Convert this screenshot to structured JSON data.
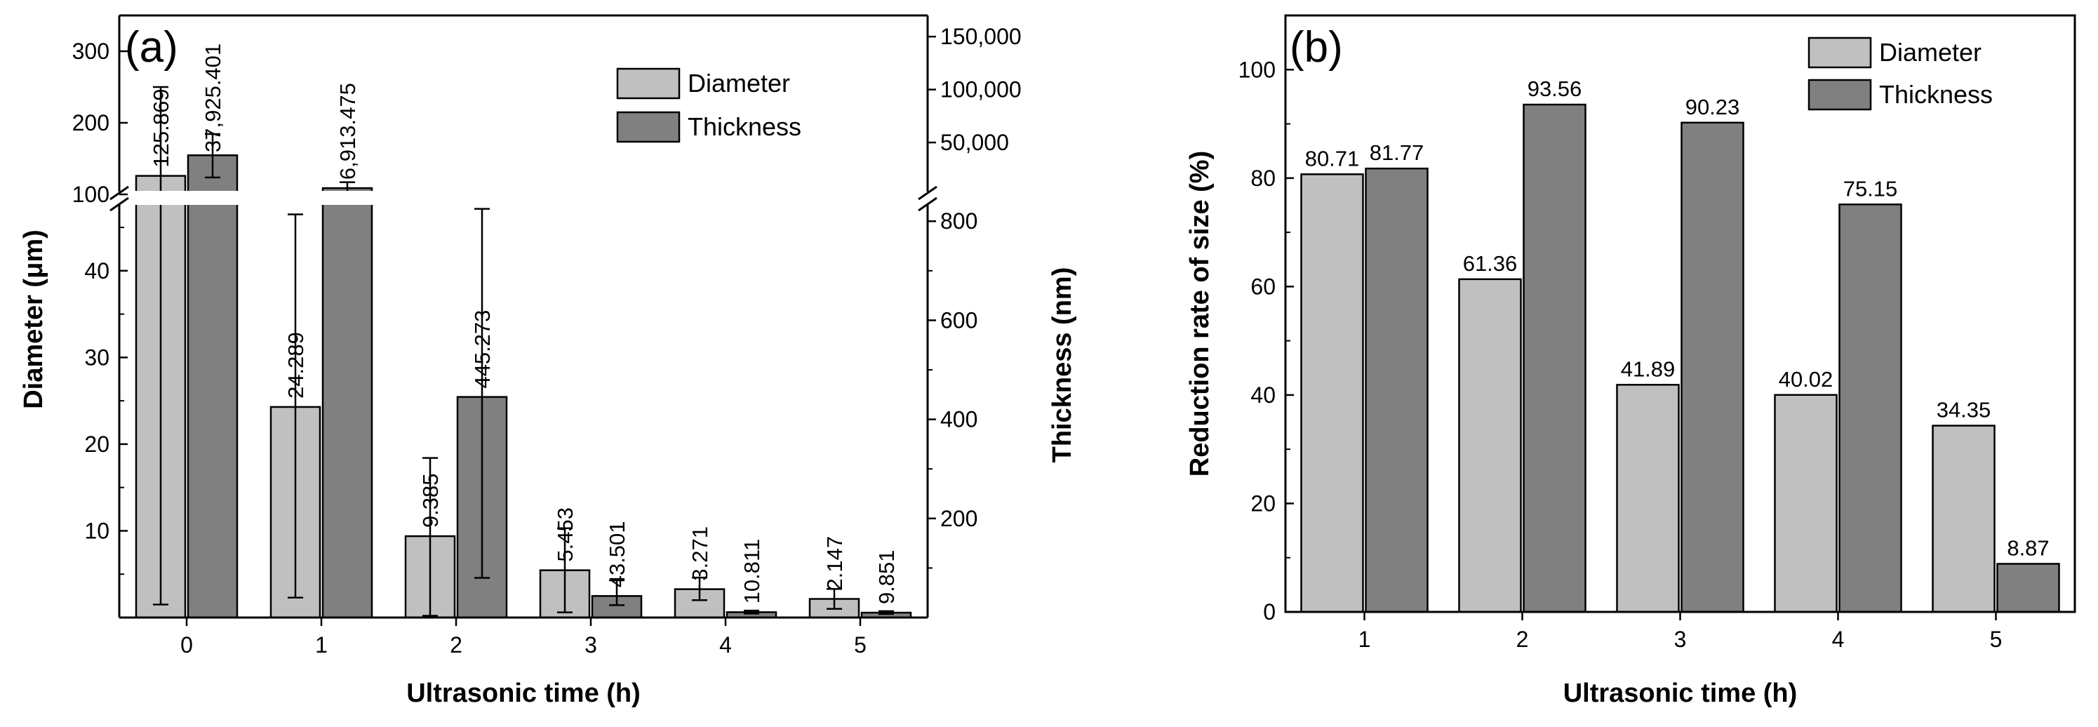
{
  "chart_data": [
    {
      "type": "bar",
      "panel_label": "(a)",
      "xlabel": "Ultrasonic time (h)",
      "ylabel_left": "Diameter (μm)",
      "ylabel_right": "Thickness (nm)",
      "categories": [
        "0",
        "1",
        "2",
        "3",
        "4",
        "5"
      ],
      "left_axis_break": {
        "lower_range": [
          0,
          48
        ],
        "upper_range": [
          100,
          350
        ]
      },
      "right_axis_break": {
        "lower_range": [
          0,
          840
        ],
        "upper_range": [
          1000,
          170000
        ]
      },
      "left_ticks_lower": [
        "10",
        "20",
        "30",
        "40"
      ],
      "left_ticks_upper": [
        "100",
        "200",
        "300"
      ],
      "right_ticks_lower": [
        "200",
        "400",
        "600",
        "800"
      ],
      "right_ticks_upper": [
        "50,000",
        "100,000",
        "150,000"
      ],
      "legend_position": "top-right",
      "series": [
        {
          "name": "Diameter",
          "axis": "left",
          "color": "#c0c0c0",
          "values": [
            125.869,
            24.289,
            9.385,
            5.453,
            3.271,
            2.147
          ],
          "labels": [
            "125.869",
            "24.289",
            "9.385",
            "5.453",
            "3.271",
            "2.147"
          ],
          "error_low": [
            1.5,
            2.3,
            0.2,
            0.6,
            2.0,
            1.0
          ],
          "error_high": [
            250,
            46.5,
            18.4,
            10.3,
            4.6,
            3.3
          ]
        },
        {
          "name": "Thickness",
          "axis": "right",
          "color": "#808080",
          "values": [
            37925.401,
            6913.475,
            445.273,
            43.501,
            10.811,
            9.851
          ],
          "labels": [
            "37,925.401",
            "6,913.475",
            "445.273",
            "43.501",
            "10.811",
            "9.851"
          ],
          "error_low": [
            17000,
            2000,
            80,
            25,
            8,
            7
          ],
          "error_high": [
            58000,
            12500,
            825,
            75,
            14,
            13
          ]
        }
      ]
    },
    {
      "type": "bar",
      "panel_label": "(b)",
      "xlabel": "Ultrasonic time (h)",
      "ylabel": "Reduction rate of size (%)",
      "ylim": [
        0,
        110
      ],
      "yticks": [
        0,
        20,
        40,
        60,
        80,
        100
      ],
      "categories": [
        "1",
        "2",
        "3",
        "4",
        "5"
      ],
      "legend_position": "top-right",
      "series": [
        {
          "name": "Diameter",
          "color": "#c0c0c0",
          "values": [
            80.71,
            61.36,
            41.89,
            40.02,
            34.35
          ],
          "labels": [
            "80.71",
            "61.36",
            "41.89",
            "40.02",
            "34.35"
          ]
        },
        {
          "name": "Thickness",
          "color": "#808080",
          "values": [
            81.77,
            93.56,
            90.23,
            75.15,
            8.87
          ],
          "labels": [
            "81.77",
            "93.56",
            "90.23",
            "75.15",
            "8.87"
          ]
        }
      ]
    }
  ]
}
